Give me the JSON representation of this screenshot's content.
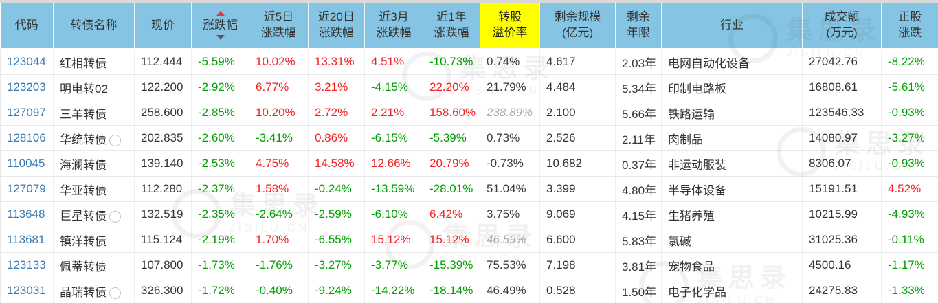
{
  "colors": {
    "header_bg": "#85c4e3",
    "highlight_bg": "#ffff00",
    "up_red": "#f42222",
    "down_green": "#00a000",
    "muted_gray": "#aaaaaa",
    "code_blue": "#3879b0"
  },
  "watermark": {
    "text": "集思录",
    "subtext": "JISILU.CN"
  },
  "table": {
    "columns": [
      {
        "key": "code",
        "type": "code",
        "lines": [
          "代码"
        ]
      },
      {
        "key": "name",
        "type": "name",
        "lines": [
          "转债名称"
        ]
      },
      {
        "key": "price",
        "type": "plain",
        "lines": [
          "现价"
        ]
      },
      {
        "key": "change",
        "type": "pct",
        "lines": [
          "涨跌幅"
        ],
        "sort": true
      },
      {
        "key": "chg5",
        "type": "pct",
        "lines": [
          "近5日",
          "涨跌幅"
        ]
      },
      {
        "key": "chg20",
        "type": "pct",
        "lines": [
          "近20日",
          "涨跌幅"
        ]
      },
      {
        "key": "chg3m",
        "type": "pct",
        "lines": [
          "近3月",
          "涨跌幅"
        ]
      },
      {
        "key": "chg1y",
        "type": "pct",
        "lines": [
          "近1年",
          "涨跌幅"
        ]
      },
      {
        "key": "premium",
        "type": "pct",
        "lines": [
          "转股",
          "溢价率"
        ],
        "highlight": true
      },
      {
        "key": "size",
        "type": "plain",
        "lines": [
          "剩余规模",
          "(亿元)"
        ]
      },
      {
        "key": "years",
        "type": "plain",
        "lines": [
          "剩余",
          "年限"
        ]
      },
      {
        "key": "industry",
        "type": "plain",
        "lines": [
          "行业"
        ]
      },
      {
        "key": "turnover",
        "type": "plain",
        "lines": [
          "成交额",
          "(万元)"
        ]
      },
      {
        "key": "stock",
        "type": "pct",
        "lines": [
          "正股",
          "涨跌"
        ]
      }
    ],
    "rows": [
      {
        "code": "123044",
        "name": "红相转债",
        "info": false,
        "price": "112.444",
        "change": {
          "v": "-5.59%",
          "c": "down"
        },
        "chg5": {
          "v": "10.02%",
          "c": "up"
        },
        "chg20": {
          "v": "13.31%",
          "c": "up"
        },
        "chg3m": {
          "v": "4.51%",
          "c": "up"
        },
        "chg1y": {
          "v": "-10.73%",
          "c": "down"
        },
        "premium": {
          "v": "0.74%",
          "c": "flat"
        },
        "size": "4.617",
        "years": "2.03年",
        "industry": "电网自动化设备",
        "turnover": "27042.76",
        "stock": {
          "v": "-8.22%",
          "c": "down"
        }
      },
      {
        "code": "123203",
        "name": "明电转02",
        "info": false,
        "price": "122.200",
        "change": {
          "v": "-2.92%",
          "c": "down"
        },
        "chg5": {
          "v": "6.77%",
          "c": "up"
        },
        "chg20": {
          "v": "3.21%",
          "c": "up"
        },
        "chg3m": {
          "v": "-4.15%",
          "c": "down"
        },
        "chg1y": {
          "v": "22.20%",
          "c": "up"
        },
        "premium": {
          "v": "21.79%",
          "c": "flat"
        },
        "size": "4.484",
        "years": "5.34年",
        "industry": "印制电路板",
        "turnover": "16808.61",
        "stock": {
          "v": "-5.61%",
          "c": "down"
        }
      },
      {
        "code": "127097",
        "name": "三羊转债",
        "info": false,
        "price": "258.600",
        "change": {
          "v": "-2.85%",
          "c": "down"
        },
        "chg5": {
          "v": "10.20%",
          "c": "up"
        },
        "chg20": {
          "v": "2.72%",
          "c": "up"
        },
        "chg3m": {
          "v": "2.21%",
          "c": "up"
        },
        "chg1y": {
          "v": "158.60%",
          "c": "up"
        },
        "premium": {
          "v": "238.89%",
          "c": "muted"
        },
        "size": "2.100",
        "years": "5.66年",
        "industry": "铁路运输",
        "turnover": "123546.33",
        "stock": {
          "v": "-0.93%",
          "c": "down"
        }
      },
      {
        "code": "128106",
        "name": "华统转债",
        "info": true,
        "price": "202.835",
        "change": {
          "v": "-2.60%",
          "c": "down"
        },
        "chg5": {
          "v": "-3.41%",
          "c": "down"
        },
        "chg20": {
          "v": "0.86%",
          "c": "up"
        },
        "chg3m": {
          "v": "-6.15%",
          "c": "down"
        },
        "chg1y": {
          "v": "-5.39%",
          "c": "down"
        },
        "premium": {
          "v": "0.73%",
          "c": "flat"
        },
        "size": "2.526",
        "years": "2.11年",
        "industry": "肉制品",
        "turnover": "14080.97",
        "stock": {
          "v": "-3.27%",
          "c": "down"
        }
      },
      {
        "code": "110045",
        "name": "海澜转债",
        "info": false,
        "price": "139.140",
        "change": {
          "v": "-2.53%",
          "c": "down"
        },
        "chg5": {
          "v": "4.75%",
          "c": "up"
        },
        "chg20": {
          "v": "14.58%",
          "c": "up"
        },
        "chg3m": {
          "v": "12.66%",
          "c": "up"
        },
        "chg1y": {
          "v": "20.79%",
          "c": "up"
        },
        "premium": {
          "v": "-0.73%",
          "c": "flat"
        },
        "size": "10.682",
        "years": "0.37年",
        "industry": "非运动服装",
        "turnover": "8306.07",
        "stock": {
          "v": "-0.93%",
          "c": "down"
        }
      },
      {
        "code": "127079",
        "name": "华亚转债",
        "info": false,
        "price": "112.280",
        "change": {
          "v": "-2.37%",
          "c": "down"
        },
        "chg5": {
          "v": "1.58%",
          "c": "up"
        },
        "chg20": {
          "v": "-0.24%",
          "c": "down"
        },
        "chg3m": {
          "v": "-13.59%",
          "c": "down"
        },
        "chg1y": {
          "v": "-28.01%",
          "c": "down"
        },
        "premium": {
          "v": "51.04%",
          "c": "flat"
        },
        "size": "3.399",
        "years": "4.80年",
        "industry": "半导体设备",
        "turnover": "15191.51",
        "stock": {
          "v": "4.52%",
          "c": "up"
        }
      },
      {
        "code": "113648",
        "name": "巨星转债",
        "info": true,
        "price": "132.519",
        "change": {
          "v": "-2.35%",
          "c": "down"
        },
        "chg5": {
          "v": "-2.64%",
          "c": "down"
        },
        "chg20": {
          "v": "-2.59%",
          "c": "down"
        },
        "chg3m": {
          "v": "-6.10%",
          "c": "down"
        },
        "chg1y": {
          "v": "6.42%",
          "c": "up"
        },
        "premium": {
          "v": "3.75%",
          "c": "flat"
        },
        "size": "9.069",
        "years": "4.15年",
        "industry": "生猪养殖",
        "turnover": "10215.99",
        "stock": {
          "v": "-4.93%",
          "c": "down"
        }
      },
      {
        "code": "113681",
        "name": "镇洋转债",
        "info": false,
        "price": "115.124",
        "change": {
          "v": "-2.19%",
          "c": "down"
        },
        "chg5": {
          "v": "1.70%",
          "c": "up"
        },
        "chg20": {
          "v": "-6.55%",
          "c": "down"
        },
        "chg3m": {
          "v": "15.12%",
          "c": "up"
        },
        "chg1y": {
          "v": "15.12%",
          "c": "up"
        },
        "premium": {
          "v": "46.59%",
          "c": "muted"
        },
        "size": "6.600",
        "years": "5.83年",
        "industry": "氯碱",
        "turnover": "31025.36",
        "stock": {
          "v": "-0.11%",
          "c": "down"
        }
      },
      {
        "code": "123133",
        "name": "佩蒂转债",
        "info": false,
        "price": "107.800",
        "change": {
          "v": "-1.73%",
          "c": "down"
        },
        "chg5": {
          "v": "-1.76%",
          "c": "down"
        },
        "chg20": {
          "v": "-3.27%",
          "c": "down"
        },
        "chg3m": {
          "v": "-3.77%",
          "c": "down"
        },
        "chg1y": {
          "v": "-15.39%",
          "c": "down"
        },
        "premium": {
          "v": "75.53%",
          "c": "flat"
        },
        "size": "7.198",
        "years": "3.81年",
        "industry": "宠物食品",
        "turnover": "4500.16",
        "stock": {
          "v": "-1.17%",
          "c": "down"
        }
      },
      {
        "code": "123031",
        "name": "晶瑞转债",
        "info": true,
        "price": "326.300",
        "change": {
          "v": "-1.72%",
          "c": "down"
        },
        "chg5": {
          "v": "-0.40%",
          "c": "down"
        },
        "chg20": {
          "v": "-9.24%",
          "c": "down"
        },
        "chg3m": {
          "v": "-14.22%",
          "c": "down"
        },
        "chg1y": {
          "v": "-18.14%",
          "c": "down"
        },
        "premium": {
          "v": "46.49%",
          "c": "flat"
        },
        "size": "0.528",
        "years": "1.50年",
        "industry": "电子化学品",
        "turnover": "24275.83",
        "stock": {
          "v": "-1.33%",
          "c": "down"
        }
      }
    ]
  }
}
